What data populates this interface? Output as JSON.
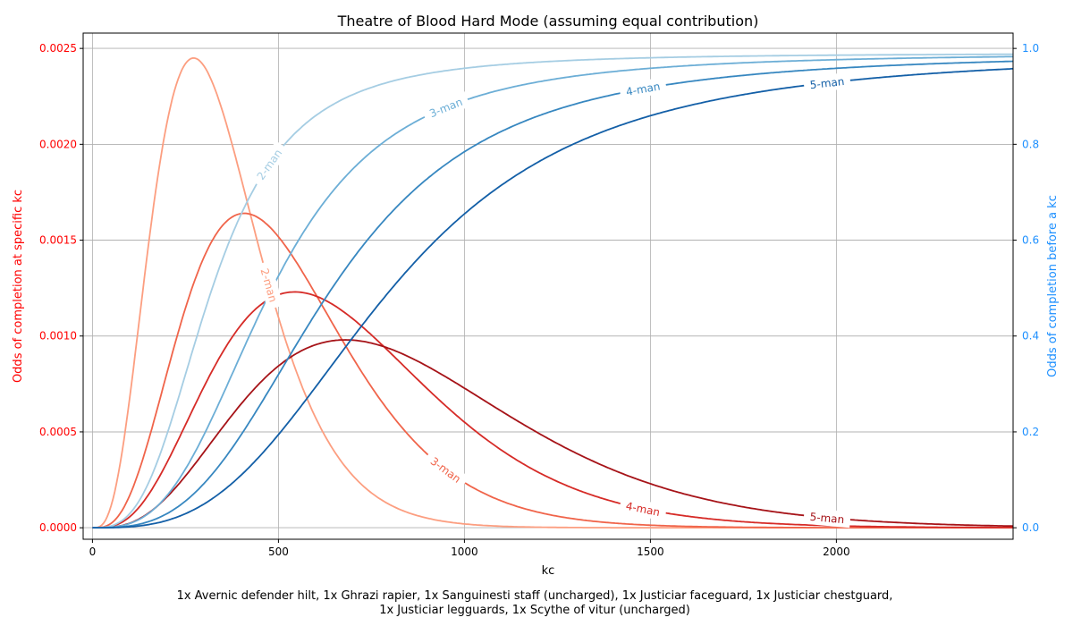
{
  "chart_data": {
    "type": "line",
    "title": "Theatre of Blood Hard Mode (assuming equal contribution)",
    "xlabel": "kc",
    "ylabel_left": "Odds of completion at specific kc",
    "ylabel_right": "Odds of completion before a kc",
    "caption_lines": [
      "1x Avernic defender hilt, 1x Ghrazi rapier, 1x Sanguinesti staff (uncharged), 1x Justiciar faceguard, 1x Justiciar chestguard,",
      "1x Justiciar legguards, 1x Scythe of vitur (uncharged)"
    ],
    "xlim": [
      -25,
      2475
    ],
    "ylim_left": [
      -6e-05,
      0.00258
    ],
    "ylim_right": [
      -0.024,
      1.032
    ],
    "xticks": [
      "0",
      "500",
      "1000",
      "1500",
      "2000"
    ],
    "yticks_left": [
      "0.0000",
      "0.0005",
      "0.0010",
      "0.0015",
      "0.0020",
      "0.0025"
    ],
    "yticks_right": [
      "0.0",
      "0.2",
      "0.4",
      "0.6",
      "0.8",
      "1.0"
    ],
    "left_axis_color": "#ff0000",
    "right_axis_color": "#1e90ff",
    "grid": true,
    "series": [
      {
        "name": "2-man",
        "axis": "left",
        "peak_kc": 272,
        "peak_value": 0.00245,
        "color": "#fc9e80"
      },
      {
        "name": "3-man",
        "axis": "left",
        "peak_kc": 408,
        "peak_value": 0.00164,
        "color": "#f0644a"
      },
      {
        "name": "4-man",
        "axis": "left",
        "peak_kc": 544,
        "peak_value": 0.00123,
        "color": "#d62b27"
      },
      {
        "name": "5-man",
        "axis": "left",
        "peak_kc": 680,
        "peak_value": 0.00098,
        "color": "#a61318"
      },
      {
        "name": "2-man",
        "axis": "right",
        "median_kc": 320,
        "max_value": 0.99,
        "color": "#a5cde3"
      },
      {
        "name": "3-man",
        "axis": "right",
        "median_kc": 480,
        "max_value": 0.99,
        "color": "#6caed6"
      },
      {
        "name": "4-man",
        "axis": "right",
        "median_kc": 640,
        "max_value": 0.99,
        "color": "#3787c0"
      },
      {
        "name": "5-man",
        "axis": "right",
        "median_kc": 800,
        "max_value": 0.99,
        "color": "#135fa7"
      }
    ],
    "labels": [
      {
        "text": "2-man",
        "series": 0,
        "kc": 475
      },
      {
        "text": "3-man",
        "series": 1,
        "kc": 950
      },
      {
        "text": "4-man",
        "series": 2,
        "kc": 1480
      },
      {
        "text": "5-man",
        "series": 3,
        "kc": 1975
      },
      {
        "text": "2-man",
        "series": 4,
        "kc": 475
      },
      {
        "text": "3-man",
        "series": 5,
        "kc": 950
      },
      {
        "text": "4-man",
        "series": 6,
        "kc": 1480
      },
      {
        "text": "5-man",
        "series": 7,
        "kc": 1975
      }
    ]
  }
}
